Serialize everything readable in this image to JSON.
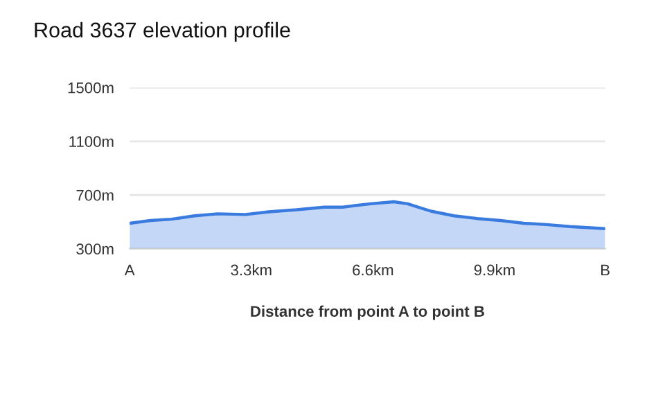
{
  "chart_data": {
    "type": "area",
    "title": "Road 3637 elevation profile",
    "xlabel": "Distance from point A to point B",
    "x": [
      0,
      0.57,
      1.13,
      1.76,
      2.39,
      3.14,
      3.77,
      4.53,
      5.28,
      5.78,
      6.54,
      7.17,
      7.54,
      8.17,
      8.8,
      9.43,
      10.06,
      10.69,
      11.31,
      11.94,
      12.9
    ],
    "series": [
      {
        "color": "#3a7be0",
        "values": [
          490,
          510,
          520,
          545,
          560,
          555,
          575,
          590,
          610,
          610,
          635,
          650,
          635,
          580,
          545,
          525,
          510,
          490,
          480,
          465,
          450
        ]
      }
    ],
    "xlim": [
      0,
      12.9
    ],
    "xticks": [
      {
        "value": 0,
        "label": "A"
      },
      {
        "value": 3.3,
        "label": "3.3km"
      },
      {
        "value": 6.6,
        "label": "6.6km"
      },
      {
        "value": 9.9,
        "label": "9.9km"
      },
      {
        "value": 12.9,
        "label": "B"
      }
    ],
    "ylim": [
      300,
      1500
    ],
    "yticks": [
      {
        "value": 300,
        "label": "300m"
      },
      {
        "value": 700,
        "label": "700m"
      },
      {
        "value": 1100,
        "label": "1100m"
      },
      {
        "value": 1500,
        "label": "1500m"
      }
    ],
    "grid": "y"
  }
}
